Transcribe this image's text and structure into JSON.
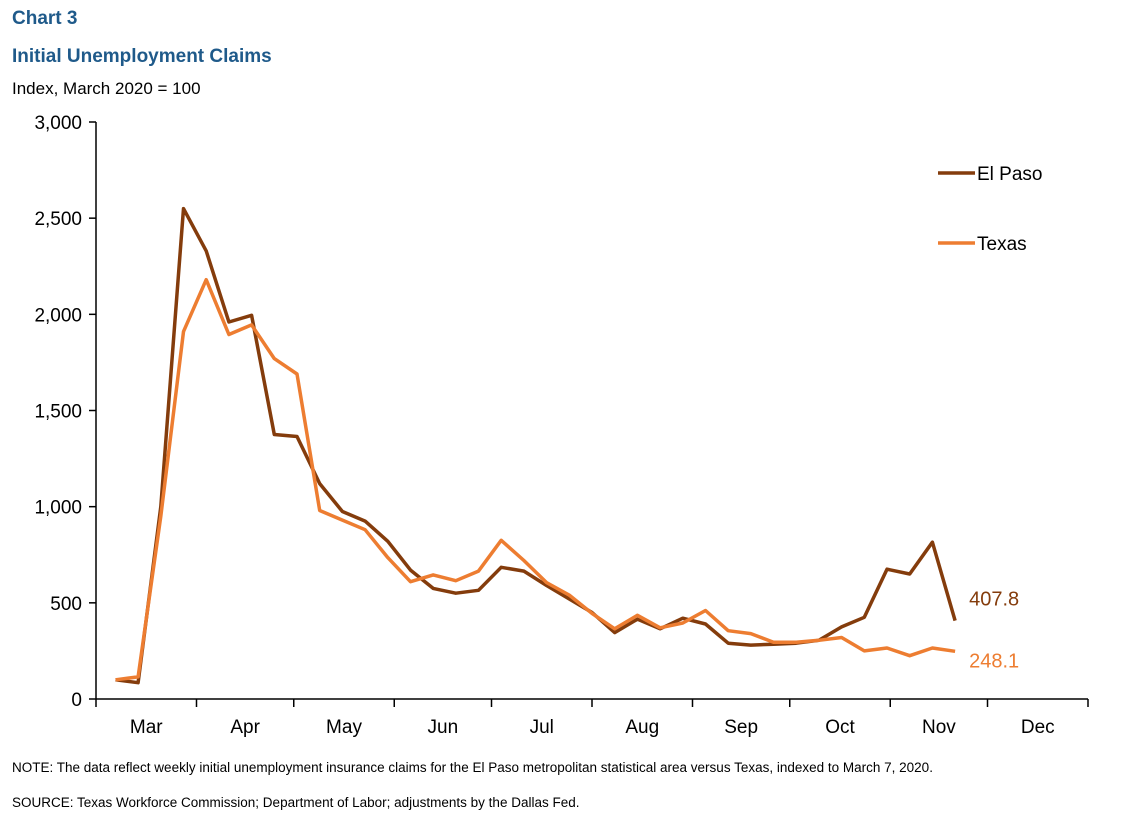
{
  "header": {
    "chart_label": "Chart 3",
    "title": "Initial Unemployment  Claims",
    "subtitle": "Index, March 2020 = 100"
  },
  "footer": {
    "note": "NOTE: The data reflect weekly initial unemployment  insurance claims for the El Paso metropolitan statistical area versus Texas, indexed to March 7, 2020.",
    "source": "SOURCE: Texas Workforce Commission; Department of Labor; adjustments  by the Dallas Fed."
  },
  "colors": {
    "el_paso": "#843c0c",
    "texas": "#ed7d31",
    "title": "#1f5a8a"
  },
  "chart_data": {
    "type": "line",
    "title": "Initial Unemployment  Claims",
    "ylabel": "Index, March 2020 = 100",
    "ylim": [
      0,
      3000
    ],
    "yticks": [
      0,
      500,
      1000,
      1500,
      2000,
      2500,
      3000
    ],
    "ytick_labels": [
      "0",
      "500",
      "1,000",
      "1,500",
      "2,000",
      "2,500",
      "3,000"
    ],
    "month_labels": [
      "Mar",
      "Apr",
      "May",
      "Jun",
      "Jul",
      "Aug",
      "Sep",
      "Oct",
      "Nov",
      "Dec"
    ],
    "grid": false,
    "legend_position": "top-right",
    "x": [
      "2020-03-07",
      "2020-03-14",
      "2020-03-21",
      "2020-03-28",
      "2020-04-04",
      "2020-04-11",
      "2020-04-18",
      "2020-04-25",
      "2020-05-02",
      "2020-05-09",
      "2020-05-16",
      "2020-05-23",
      "2020-05-30",
      "2020-06-06",
      "2020-06-13",
      "2020-06-20",
      "2020-06-27",
      "2020-07-04",
      "2020-07-11",
      "2020-07-18",
      "2020-07-25",
      "2020-08-01",
      "2020-08-08",
      "2020-08-15",
      "2020-08-22",
      "2020-08-29",
      "2020-09-05",
      "2020-09-12",
      "2020-09-19",
      "2020-09-26",
      "2020-10-03",
      "2020-10-10",
      "2020-10-17",
      "2020-10-24",
      "2020-10-31",
      "2020-11-07",
      "2020-11-14",
      "2020-11-21"
    ],
    "series": [
      {
        "name": "El Paso",
        "color": "#843c0c",
        "values": [
          100,
          85,
          1000,
          2550,
          2330,
          1960,
          1995,
          1375,
          1365,
          1120,
          975,
          925,
          820,
          670,
          575,
          550,
          565,
          685,
          665,
          590,
          520,
          450,
          345,
          415,
          365,
          420,
          390,
          290,
          280,
          285,
          290,
          305,
          375,
          425,
          675,
          650,
          815,
          407.8
        ],
        "end_label": "407.8"
      },
      {
        "name": "Texas",
        "color": "#ed7d31",
        "values": [
          100,
          115,
          950,
          1910,
          2180,
          1895,
          1945,
          1770,
          1690,
          980,
          930,
          880,
          735,
          610,
          645,
          615,
          665,
          825,
          720,
          605,
          540,
          445,
          365,
          435,
          370,
          395,
          460,
          355,
          340,
          295,
          295,
          305,
          320,
          250,
          265,
          225,
          265,
          248.1
        ],
        "end_label": "248.1"
      }
    ]
  }
}
